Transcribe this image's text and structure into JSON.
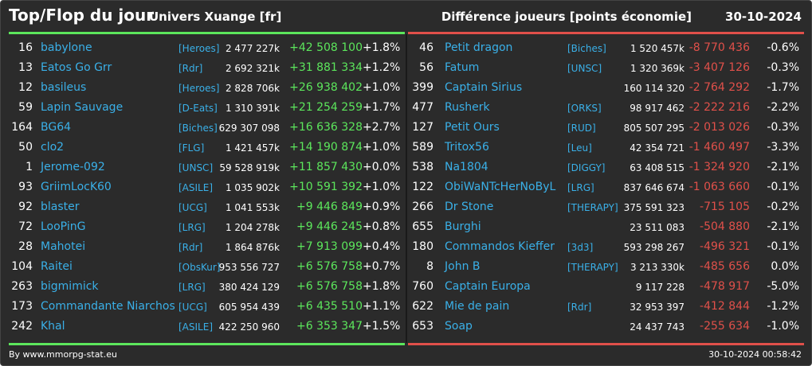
{
  "header": {
    "title": "Top/Flop du jour",
    "universe": "Univers Xuange [fr]",
    "metric": "Différence joueurs [points économie]",
    "date": "30-10-2024"
  },
  "colors": {
    "background": "#2b2b2b",
    "positive": "#5ce65c",
    "negative": "#e0504a",
    "link": "#3ab0e8"
  },
  "top": [
    {
      "rank": "16",
      "name": "babylone",
      "alliance": "[Heroes]",
      "points": "2 477 227k",
      "diff": "+42 508 100",
      "pct": "+1.8%"
    },
    {
      "rank": "13",
      "name": "Eatos Go Grr",
      "alliance": "[Rdr]",
      "points": "2 692 321k",
      "diff": "+31 881 334",
      "pct": "+1.2%"
    },
    {
      "rank": "12",
      "name": "basileus",
      "alliance": "[Heroes]",
      "points": "2 828 706k",
      "diff": "+26 938 402",
      "pct": "+1.0%"
    },
    {
      "rank": "59",
      "name": "Lapin Sauvage",
      "alliance": "[D-Eats]",
      "points": "1 310 391k",
      "diff": "+21 254 259",
      "pct": "+1.7%"
    },
    {
      "rank": "164",
      "name": "BG64",
      "alliance": "[Biches]",
      "points": "629 307 098",
      "diff": "+16 636 328",
      "pct": "+2.7%"
    },
    {
      "rank": "50",
      "name": "clo2",
      "alliance": "[FLG]",
      "points": "1 421 457k",
      "diff": "+14 190 874",
      "pct": "+1.0%"
    },
    {
      "rank": "1",
      "name": "Jerome-092",
      "alliance": "[UNSC]",
      "points": "59 528 919k",
      "diff": "+11 857 430",
      "pct": "+0.0%"
    },
    {
      "rank": "93",
      "name": "GriimLocK60",
      "alliance": "[ASILE]",
      "points": "1 035 902k",
      "diff": "+10 591 392",
      "pct": "+1.0%"
    },
    {
      "rank": "92",
      "name": "blaster",
      "alliance": "[UCG]",
      "points": "1 041 553k",
      "diff": "+9 446 849",
      "pct": "+0.9%"
    },
    {
      "rank": "72",
      "name": "LooPinG",
      "alliance": "[LRG]",
      "points": "1 204 278k",
      "diff": "+9 446 245",
      "pct": "+0.8%"
    },
    {
      "rank": "28",
      "name": "Mahotei",
      "alliance": "[Rdr]",
      "points": "1 864 876k",
      "diff": "+7 913 099",
      "pct": "+0.4%"
    },
    {
      "rank": "104",
      "name": "Raitei",
      "alliance": "[ObsKur]",
      "points": "953 556 727",
      "diff": "+6 576 758",
      "pct": "+0.7%"
    },
    {
      "rank": "263",
      "name": "bigmimick",
      "alliance": "[LRG]",
      "points": "380 424 129",
      "diff": "+6 576 758",
      "pct": "+1.8%"
    },
    {
      "rank": "173",
      "name": "Commandante Niarchos",
      "alliance": "[UCG]",
      "points": "605 954 439",
      "diff": "+6 435 510",
      "pct": "+1.1%"
    },
    {
      "rank": "242",
      "name": "Khal",
      "alliance": "[ASILE]",
      "points": "422 250 960",
      "diff": "+6 353 347",
      "pct": "+1.5%"
    }
  ],
  "flop": [
    {
      "rank": "46",
      "name": "Petit dragon",
      "alliance": "[Biches]",
      "points": "1 520 457k",
      "diff": "-8 770 436",
      "pct": "-0.6%"
    },
    {
      "rank": "56",
      "name": "Fatum",
      "alliance": "[UNSC]",
      "points": "1 320 369k",
      "diff": "-3 407 126",
      "pct": "-0.3%"
    },
    {
      "rank": "399",
      "name": "Captain Sirius",
      "alliance": "",
      "points": "160 114 320",
      "diff": "-2 764 292",
      "pct": "-1.7%"
    },
    {
      "rank": "477",
      "name": "Rusherk",
      "alliance": "[ORKS]",
      "points": "98 917 462",
      "diff": "-2 222 216",
      "pct": "-2.2%"
    },
    {
      "rank": "127",
      "name": "Petit Ours",
      "alliance": "[RUD]",
      "points": "805 507 295",
      "diff": "-2 013 026",
      "pct": "-0.3%"
    },
    {
      "rank": "589",
      "name": "Tritox56",
      "alliance": "[Leu]",
      "points": "42 354 721",
      "diff": "-1 460 497",
      "pct": "-3.3%"
    },
    {
      "rank": "538",
      "name": "Na1804",
      "alliance": "[DIGGY]",
      "points": "63 408 515",
      "diff": "-1 324 920",
      "pct": "-2.1%"
    },
    {
      "rank": "122",
      "name": "ObiWaNTcHerNoByL",
      "alliance": "[LRG]",
      "points": "837 646 674",
      "diff": "-1 063 660",
      "pct": "-0.1%"
    },
    {
      "rank": "266",
      "name": "Dr Stone",
      "alliance": "[THERAPY]",
      "points": "375 591 323",
      "diff": "-715 105",
      "pct": "-0.2%"
    },
    {
      "rank": "655",
      "name": "Burghi",
      "alliance": "",
      "points": "23 511 083",
      "diff": "-504 880",
      "pct": "-2.1%"
    },
    {
      "rank": "180",
      "name": "Commandos Kieffer",
      "alliance": "[3d3]",
      "points": "593 298 267",
      "diff": "-496 321",
      "pct": "-0.1%"
    },
    {
      "rank": "8",
      "name": "John B",
      "alliance": "[THERAPY]",
      "points": "3 213 330k",
      "diff": "-485 656",
      "pct": "0.0%"
    },
    {
      "rank": "760",
      "name": "Captain Europa",
      "alliance": "",
      "points": "9 117 228",
      "diff": "-478 917",
      "pct": "-5.0%"
    },
    {
      "rank": "622",
      "name": "Mie de pain",
      "alliance": "[Rdr]",
      "points": "32 953 397",
      "diff": "-412 844",
      "pct": "-1.2%"
    },
    {
      "rank": "653",
      "name": "Soap",
      "alliance": "",
      "points": "24 437 743",
      "diff": "-255 634",
      "pct": "-1.0%"
    }
  ],
  "footer": {
    "source": "By www.mmorpg-stat.eu",
    "timestamp": "30-10-2024 00:58:42"
  }
}
